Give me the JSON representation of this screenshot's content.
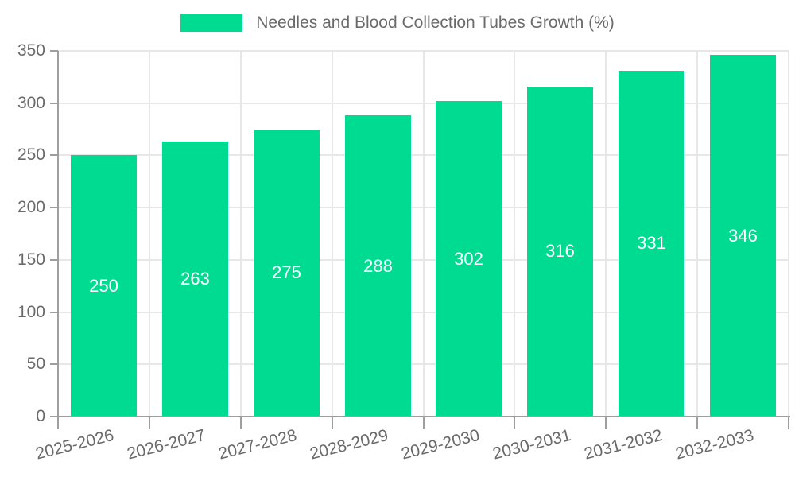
{
  "legend": {
    "label": "Needles and Blood Collection Tubes Growth (%)"
  },
  "colors": {
    "bar": "#00db92",
    "bar_label": "#ffffff",
    "axis_text": "#6a6a6a",
    "grid": "#e7e7e7",
    "tick": "#9e9e9e",
    "axis_line": "#9e9e9e",
    "background": "#ffffff"
  },
  "chart_data": {
    "type": "bar",
    "title": "Needles and Blood Collection Tubes Growth (%)",
    "categories": [
      "2025-2026",
      "2026-2027",
      "2027-2028",
      "2028-2029",
      "2029-2030",
      "2030-2031",
      "2031-2032",
      "2032-2033"
    ],
    "values": [
      250,
      263,
      275,
      288,
      302,
      316,
      331,
      346
    ],
    "xlabel": "",
    "ylabel": "",
    "ylim": [
      0,
      350
    ],
    "ytick_step": 50,
    "ytick_labels": [
      "0",
      "50",
      "100",
      "150",
      "200",
      "250",
      "300",
      "350"
    ],
    "grid": true,
    "legend_position": "top",
    "value_label_position": "inside-center",
    "value_label_color": "#ffffff",
    "bar_color": "#00db92"
  }
}
